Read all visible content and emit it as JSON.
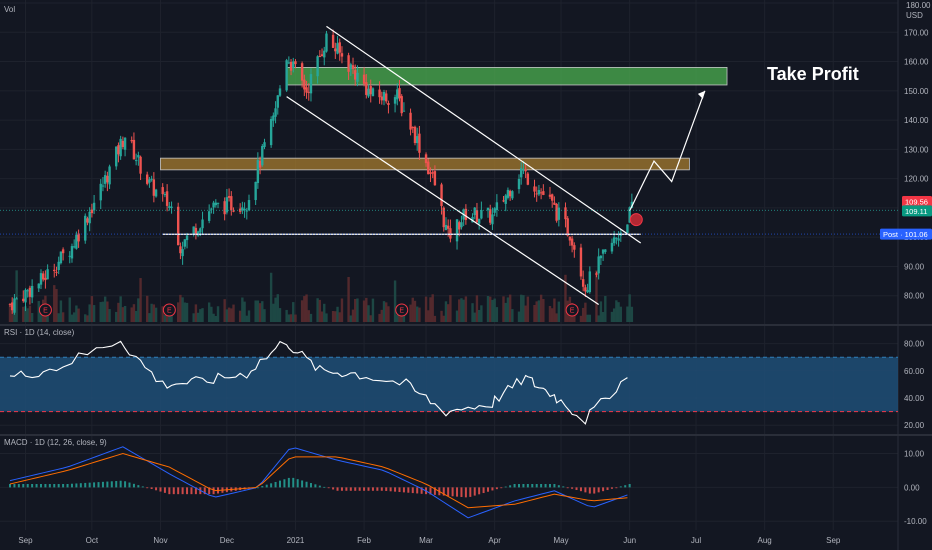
{
  "chart_data": [
    {
      "type": "candlestick",
      "pane": "price",
      "currency": "USD",
      "ylim": [
        70,
        180
      ],
      "y_ticks": [
        "80.00",
        "90.00",
        "100.00",
        "110.00",
        "120.00",
        "130.00",
        "140.00",
        "150.00",
        "160.00",
        "170.00",
        "180.00"
      ],
      "x_ticks": [
        "Sep",
        "Oct",
        "Nov",
        "Dec",
        "2021",
        "Feb",
        "Mar",
        "Apr",
        "May",
        "Jun",
        "Jul",
        "Aug",
        "Sep"
      ],
      "volume_label": "Vol",
      "price_tags": [
        {
          "label": "",
          "value": "109.56",
          "color": "#f23645"
        },
        {
          "label": "",
          "value": "109.11",
          "color": "#089981"
        },
        {
          "label": "Post",
          "value": "101.06",
          "color": "#2962ff"
        }
      ],
      "earnings_marker": "E",
      "earnings_dates": [
        "2020-09-10",
        "2020-11-05",
        "2021-02-18",
        "2021-05-06"
      ],
      "zones": [
        {
          "name": "take-profit-zone",
          "low": 152,
          "high": 158,
          "color": "#4caf50",
          "label": "Take Profit"
        },
        {
          "name": "resistance-zone",
          "low": 123,
          "high": 127,
          "color": "#a67c2e"
        }
      ],
      "support_level": 101,
      "series_close_key": [
        {
          "date": "2020-08-25",
          "close": 77
        },
        {
          "date": "2020-09-08",
          "close": 85
        },
        {
          "date": "2020-09-22",
          "close": 97
        },
        {
          "date": "2020-10-06",
          "close": 118
        },
        {
          "date": "2020-10-16",
          "close": 135
        },
        {
          "date": "2020-10-27",
          "close": 118
        },
        {
          "date": "2020-11-06",
          "close": 110
        },
        {
          "date": "2020-11-10",
          "close": 97
        },
        {
          "date": "2020-11-24",
          "close": 110
        },
        {
          "date": "2020-12-10",
          "close": 112
        },
        {
          "date": "2020-12-22",
          "close": 140
        },
        {
          "date": "2020-12-28",
          "close": 162
        },
        {
          "date": "2021-01-06",
          "close": 150
        },
        {
          "date": "2021-01-15",
          "close": 168
        },
        {
          "date": "2021-01-26",
          "close": 158
        },
        {
          "date": "2021-02-05",
          "close": 148
        },
        {
          "date": "2021-02-16",
          "close": 148
        },
        {
          "date": "2021-02-24",
          "close": 135
        },
        {
          "date": "2021-03-05",
          "close": 118
        },
        {
          "date": "2021-03-11",
          "close": 100
        },
        {
          "date": "2021-03-19",
          "close": 108
        },
        {
          "date": "2021-03-31",
          "close": 107
        },
        {
          "date": "2021-04-13",
          "close": 123
        },
        {
          "date": "2021-04-26",
          "close": 112
        },
        {
          "date": "2021-05-06",
          "close": 100
        },
        {
          "date": "2021-05-12",
          "close": 83
        },
        {
          "date": "2021-05-20",
          "close": 93
        },
        {
          "date": "2021-05-27",
          "close": 101
        },
        {
          "date": "2021-06-02",
          "close": 109.5
        }
      ]
    },
    {
      "type": "line",
      "pane": "rsi",
      "title": "RSI · 1D (14, close)",
      "ylim": [
        15,
        90
      ],
      "y_ticks": [
        "20.00",
        "40.00",
        "60.00",
        "80.00"
      ],
      "band": [
        30,
        70
      ],
      "x": [
        "2020-08-25",
        "2020-09-15",
        "2020-10-14",
        "2020-11-02",
        "2020-11-20",
        "2020-12-10",
        "2020-12-28",
        "2021-01-12",
        "2021-01-28",
        "2021-02-20",
        "2021-03-10",
        "2021-03-31",
        "2021-04-15",
        "2021-04-28",
        "2021-05-12",
        "2021-05-31"
      ],
      "values": [
        55,
        62,
        83,
        50,
        52,
        58,
        82,
        60,
        58,
        50,
        30,
        36,
        55,
        42,
        24,
        55
      ]
    },
    {
      "type": "bar+line",
      "pane": "macd",
      "title": "MACD · 1D (12, 26, close, 9)",
      "ylim": [
        -12,
        14
      ],
      "y_ticks": [
        "10.00",
        "0.00",
        "-10.00"
      ],
      "x": [
        "2020-08-25",
        "2020-09-20",
        "2020-10-15",
        "2020-11-05",
        "2020-11-25",
        "2020-12-15",
        "2020-12-30",
        "2021-01-20",
        "2021-02-10",
        "2021-03-01",
        "2021-03-20",
        "2021-04-10",
        "2021-04-28",
        "2021-05-15",
        "2021-06-01"
      ],
      "series": [
        {
          "name": "MACD",
          "color": "#2962ff",
          "values": [
            2,
            6,
            12,
            4,
            -3,
            0,
            12,
            8,
            5,
            -1,
            -9,
            -4,
            -1,
            -6,
            -2
          ]
        },
        {
          "name": "Signal",
          "color": "#ff6d00",
          "values": [
            1,
            5,
            10,
            6,
            -1,
            0,
            9,
            9,
            6,
            1,
            -6,
            -5,
            -2,
            -4,
            -3
          ]
        }
      ]
    }
  ]
}
